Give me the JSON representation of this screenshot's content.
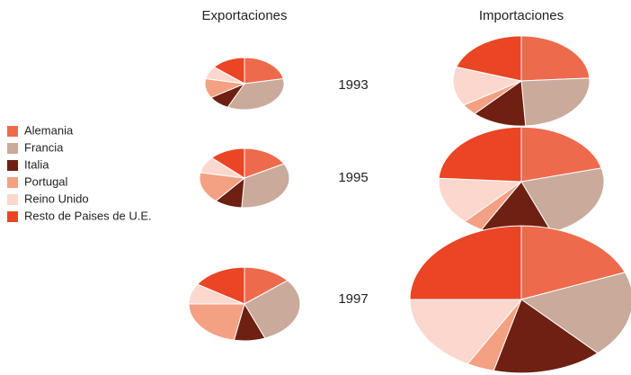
{
  "column_titles": [
    "Exportaciones",
    "Importaciones"
  ],
  "years": [
    "1993",
    "1995",
    "1997"
  ],
  "legend": {
    "categories": [
      "Alemania",
      "Francia",
      "Italia",
      "Portugal",
      "Reino Unido",
      "Resto de Paises de U.E."
    ],
    "colors": [
      "#ee6a4c",
      "#c9aa9b",
      "#6e2012",
      "#f4a083",
      "#fbd7cd",
      "#ea4525"
    ]
  },
  "chart_data": [
    {
      "type": "pie",
      "values": [
        22,
        35,
        9,
        12,
        8,
        14
      ]
    },
    {
      "type": "pie",
      "values": [
        24,
        25,
        13,
        4,
        14,
        20
      ]
    },
    {
      "type": "pie",
      "values": [
        17,
        34,
        10,
        17,
        9,
        13
      ]
    },
    {
      "type": "pie",
      "values": [
        21,
        23,
        14,
        4,
        14,
        24
      ]
    },
    {
      "type": "pie",
      "values": [
        14,
        30,
        9,
        22,
        9,
        16
      ]
    },
    {
      "type": "pie",
      "values": [
        19,
        19,
        16,
        4,
        17,
        25
      ]
    }
  ]
}
